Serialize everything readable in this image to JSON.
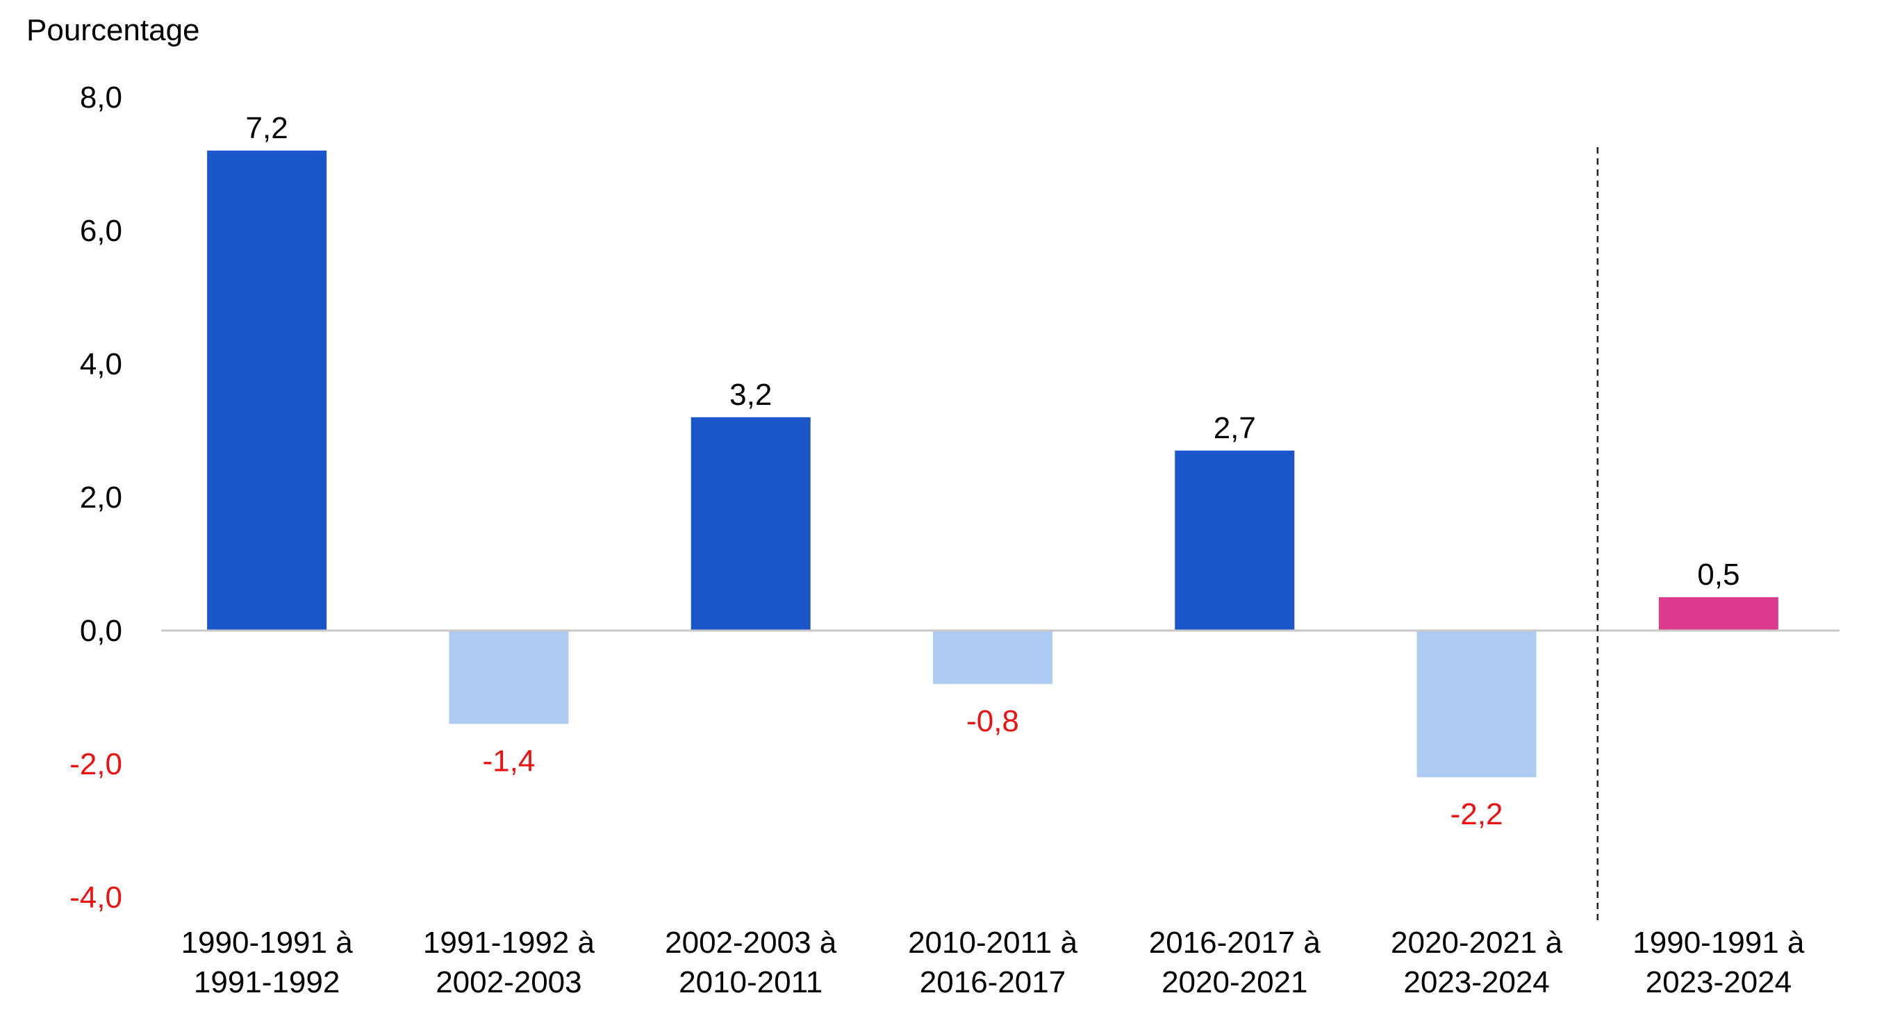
{
  "chart_data": {
    "type": "bar",
    "ylabel": "Pourcentage",
    "ylim": [
      -4,
      8
    ],
    "yticks": [
      "8,0",
      "6,0",
      "4,0",
      "2,0",
      "0,0",
      "-2,0",
      "-4,0"
    ],
    "ytick_values": [
      8,
      6,
      4,
      2,
      0,
      -2,
      -4
    ],
    "categories": [
      [
        "1990-1991 à",
        "1991-1992"
      ],
      [
        "1991-1992 à",
        "2002-2003"
      ],
      [
        "2002-2003 à",
        "2010-2011"
      ],
      [
        "2010-2011 à",
        "2016-2017"
      ],
      [
        "2016-2017 à",
        "2020-2021"
      ],
      [
        "2020-2021 à",
        "2023-2024"
      ],
      [
        "1990-1991 à",
        "2023-2024"
      ]
    ],
    "values": [
      7.2,
      -1.4,
      3.2,
      -0.8,
      2.7,
      -2.2,
      0.5
    ],
    "value_labels": [
      "7,2",
      "-1,4",
      "3,2",
      "-0,8",
      "2,7",
      "-2,2",
      "0,5"
    ],
    "grid": false,
    "separator_before_last": true,
    "colors": {
      "positive": "#1a56c9",
      "negative": "#aecbf3",
      "total": "#dc3b8d",
      "negative_text": "#ee1111",
      "text": "#000000",
      "axis": "#c8c8c8",
      "separator": "#222222"
    }
  }
}
